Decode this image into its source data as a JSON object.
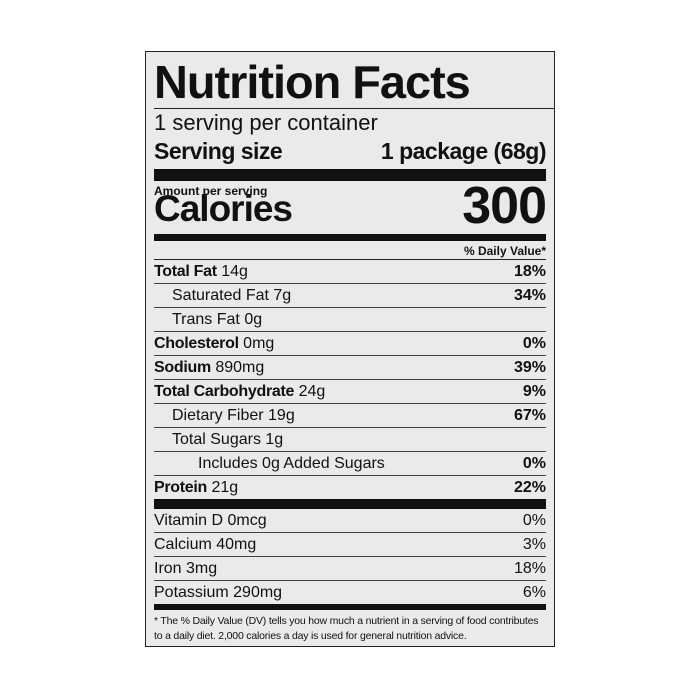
{
  "label": {
    "title": "Nutrition Facts",
    "servings_per_container": "1 serving per container",
    "serving_size_label": "Serving size",
    "serving_size_value": "1 package (68g)",
    "amount_per_serving": "Amount per serving",
    "calories_label": "Calories",
    "calories_value": "300",
    "dv_header": "% Daily Value*",
    "nutrients": [
      {
        "name": "Total Fat",
        "amount": "14g",
        "dv": "18%"
      },
      {
        "name": "Saturated Fat",
        "amount": "7g",
        "dv": "34%"
      },
      {
        "name": "Trans Fat",
        "amount": "0g",
        "dv": ""
      },
      {
        "name": "Cholesterol",
        "amount": "0mg",
        "dv": "0%"
      },
      {
        "name": "Sodium",
        "amount": "890mg",
        "dv": "39%"
      },
      {
        "name": "Total Carbohydrate",
        "amount": "24g",
        "dv": "9%"
      },
      {
        "name": "Dietary Fiber",
        "amount": "19g",
        "dv": "67%"
      },
      {
        "name": "Total Sugars",
        "amount": "1g",
        "dv": ""
      },
      {
        "name": "Includes 0g Added Sugars",
        "amount": "",
        "dv": "0%"
      },
      {
        "name": "Protein",
        "amount": "21g",
        "dv": "22%"
      }
    ],
    "vitamins": [
      {
        "name": "Vitamin D",
        "amount": "0mcg",
        "dv": "0%"
      },
      {
        "name": "Calcium",
        "amount": "40mg",
        "dv": "3%"
      },
      {
        "name": "Iron",
        "amount": "3mg",
        "dv": "18%"
      },
      {
        "name": "Potassium",
        "amount": "290mg",
        "dv": "6%"
      }
    ],
    "footnote": "* The % Daily Value (DV) tells you how much a nutrient in a serving of food contributes to a daily diet. 2,000 calories a day is used for general nutrition advice."
  }
}
